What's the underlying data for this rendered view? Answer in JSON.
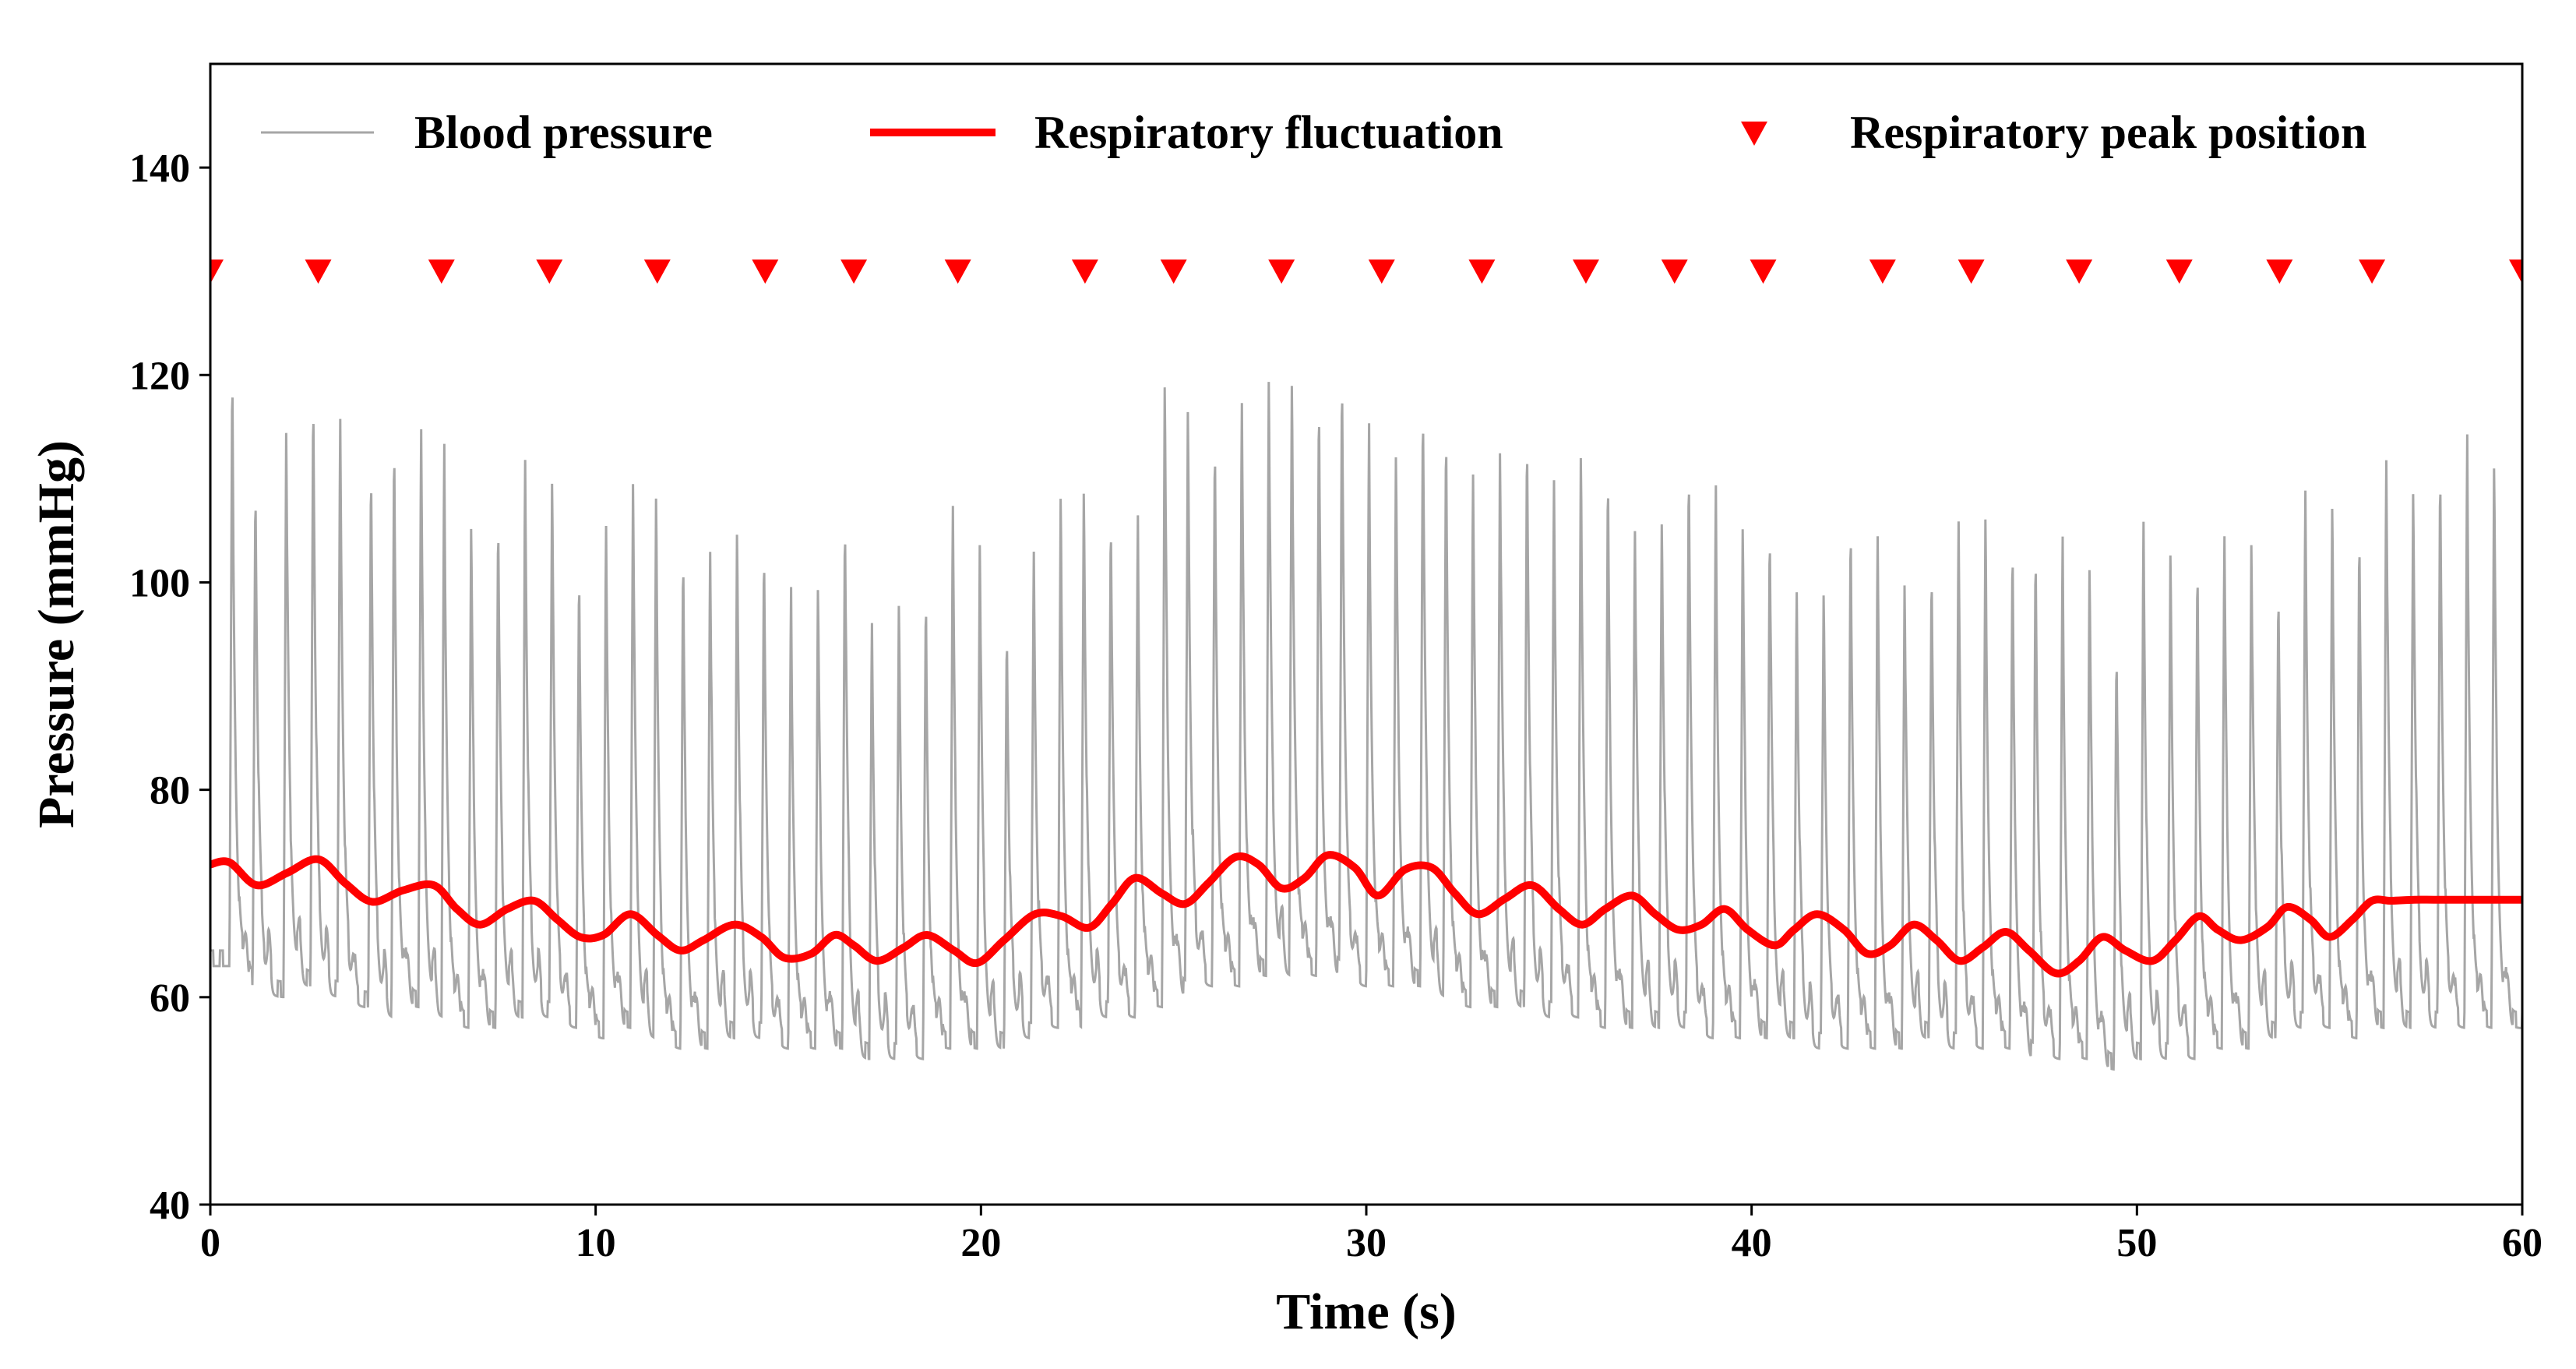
{
  "chart_data": {
    "type": "line",
    "title": "",
    "xlabel": "Time (s)",
    "ylabel": "Pressure (mmHg)",
    "xlim": [
      0,
      60
    ],
    "ylim": [
      40,
      150
    ],
    "xticks": [
      0,
      10,
      20,
      30,
      40,
      50,
      60
    ],
    "xtick_labels": [
      "0",
      "10",
      "20",
      "30",
      "40",
      "50",
      "60"
    ],
    "yticks": [
      40,
      60,
      80,
      100,
      120,
      140
    ],
    "ytick_labels": [
      "40",
      "60",
      "80",
      "100",
      "120",
      "140"
    ],
    "grid": false,
    "legend_position": "top",
    "legend": [
      "Blood pressure",
      "Respiratory fluctuation",
      "Respiratory peak position"
    ],
    "colors": {
      "blood_pressure": "#a6a6a6",
      "respiratory": "#ff0000",
      "peak": "#ff0000",
      "axis": "#000000"
    },
    "blood_pressure": {
      "name": "Blood pressure",
      "beat_times": [
        0.5,
        1.1,
        1.9,
        2.6,
        3.3,
        4.1,
        4.7,
        5.4,
        6.0,
        6.7,
        7.4,
        8.1,
        8.8,
        9.5,
        10.2,
        10.9,
        11.5,
        12.2,
        12.9,
        13.6,
        14.3,
        15.0,
        15.7,
        16.4,
        17.1,
        17.8,
        18.5,
        19.2,
        19.9,
        20.6,
        21.3,
        22.0,
        22.6,
        23.3,
        24.0,
        24.7,
        25.3,
        26.0,
        26.7,
        27.4,
        28.0,
        28.7,
        29.3,
        30.0,
        30.7,
        31.4,
        32.0,
        32.7,
        33.4,
        34.1,
        34.8,
        35.5,
        36.2,
        36.9,
        37.6,
        38.3,
        39.0,
        39.7,
        40.4,
        41.1,
        41.8,
        42.5,
        43.2,
        43.9,
        44.6,
        45.3,
        46.0,
        46.7,
        47.3,
        48.0,
        48.7,
        49.4,
        50.1,
        50.8,
        51.5,
        52.2,
        52.9,
        53.6,
        54.3,
        55.0,
        55.7,
        56.4,
        57.1,
        57.8,
        58.5,
        59.2
      ],
      "systolic": [
        120,
        110,
        116,
        119,
        117,
        112,
        113,
        116,
        113,
        105,
        107,
        113,
        111,
        100,
        105,
        111,
        108,
        102,
        104,
        106,
        104,
        99,
        99,
        107,
        97,
        99,
        98,
        107,
        105,
        96,
        104,
        108,
        110,
        107,
        106,
        119,
        118,
        113,
        117,
        121,
        119,
        117,
        121,
        115,
        112,
        118,
        114,
        110,
        114,
        115,
        111,
        112,
        110,
        106,
        107,
        112,
        109,
        105,
        106,
        100,
        100,
        105,
        104,
        101,
        102,
        107,
        106,
        103,
        104,
        104,
        101,
        94,
        107,
        104,
        101,
        104,
        105,
        100,
        110,
        107,
        104,
        113,
        110,
        112,
        114,
        111
      ],
      "diastolic": [
        63,
        61,
        60,
        61,
        60,
        59,
        58,
        59,
        58,
        57,
        57,
        58,
        58,
        57,
        56,
        57,
        56,
        55,
        55,
        56,
        56,
        55,
        55,
        55,
        54,
        54,
        54,
        55,
        55,
        55,
        56,
        57,
        57,
        58,
        58,
        59,
        60,
        61,
        61,
        62,
        62,
        62,
        62,
        61,
        61,
        61,
        60,
        59,
        59,
        59,
        58,
        58,
        57,
        57,
        57,
        57,
        56,
        56,
        56,
        56,
        55,
        55,
        55,
        55,
        56,
        55,
        55,
        55,
        54,
        54,
        54,
        53,
        54,
        54,
        54,
        55,
        55,
        56,
        57,
        57,
        56,
        57,
        57,
        57,
        57,
        57
      ]
    },
    "respiratory_fluctuation": {
      "name": "Respiratory fluctuation",
      "x": [
        0,
        0.5,
        1.2,
        2.0,
        2.8,
        3.5,
        4.2,
        5.0,
        5.8,
        6.4,
        7.0,
        7.7,
        8.4,
        9.0,
        9.6,
        10.2,
        10.9,
        11.6,
        12.2,
        12.8,
        13.6,
        14.3,
        14.9,
        15.6,
        16.2,
        16.7,
        17.3,
        18.0,
        18.6,
        19.3,
        19.9,
        20.6,
        21.4,
        22.1,
        22.8,
        23.4,
        24.0,
        24.7,
        25.3,
        25.9,
        26.6,
        27.2,
        27.8,
        28.4,
        29.0,
        29.7,
        30.3,
        31.0,
        31.7,
        32.3,
        32.9,
        33.6,
        34.3,
        35.0,
        35.6,
        36.2,
        36.9,
        37.5,
        38.1,
        38.7,
        39.3,
        39.9,
        40.6,
        41.1,
        41.7,
        42.4,
        43.0,
        43.6,
        44.2,
        44.8,
        45.4,
        46.0,
        46.6,
        47.2,
        47.9,
        48.5,
        49.1,
        49.7,
        50.4,
        51.0,
        51.6,
        52.1,
        52.7,
        53.4,
        53.9,
        54.5,
        55.0,
        55.6,
        56.1,
        56.6,
        57.2,
        57.7,
        58.3,
        59.0,
        59.5,
        60
      ],
      "y": [
        72.8,
        73.0,
        70.8,
        72.0,
        73.3,
        71.0,
        69.2,
        70.3,
        70.8,
        68.5,
        67.0,
        68.5,
        69.3,
        67.5,
        65.8,
        66.0,
        68.0,
        66.0,
        64.5,
        65.5,
        67.0,
        65.8,
        63.8,
        64.2,
        66.0,
        65.0,
        63.5,
        64.8,
        66.0,
        64.5,
        63.3,
        65.5,
        68.0,
        67.8,
        66.7,
        69.0,
        71.5,
        70.0,
        69.0,
        71.0,
        73.5,
        72.8,
        70.5,
        71.5,
        73.7,
        72.5,
        69.8,
        72.3,
        72.5,
        70.0,
        68.0,
        69.5,
        70.8,
        68.5,
        67.0,
        68.5,
        69.8,
        68.0,
        66.5,
        67.0,
        68.5,
        66.5,
        65.0,
        66.5,
        68.0,
        66.5,
        64.2,
        65.0,
        67.0,
        65.5,
        63.5,
        64.8,
        66.3,
        64.5,
        62.3,
        63.5,
        65.8,
        64.5,
        63.5,
        65.5,
        67.8,
        66.5,
        65.5,
        66.8,
        68.7,
        67.5,
        65.8,
        67.5,
        69.3,
        69.3,
        69.4,
        69.4,
        69.4,
        69.4,
        69.4,
        69.4
      ]
    },
    "respiratory_peaks": {
      "name": "Respiratory peak position",
      "x": [
        0.0,
        2.8,
        6.0,
        8.8,
        11.6,
        14.4,
        16.7,
        19.4,
        22.7,
        25.0,
        27.8,
        30.4,
        33.0,
        35.7,
        38.0,
        40.3,
        43.4,
        45.7,
        48.5,
        51.1,
        53.7,
        56.1,
        60.0
      ],
      "y": 130
    }
  }
}
